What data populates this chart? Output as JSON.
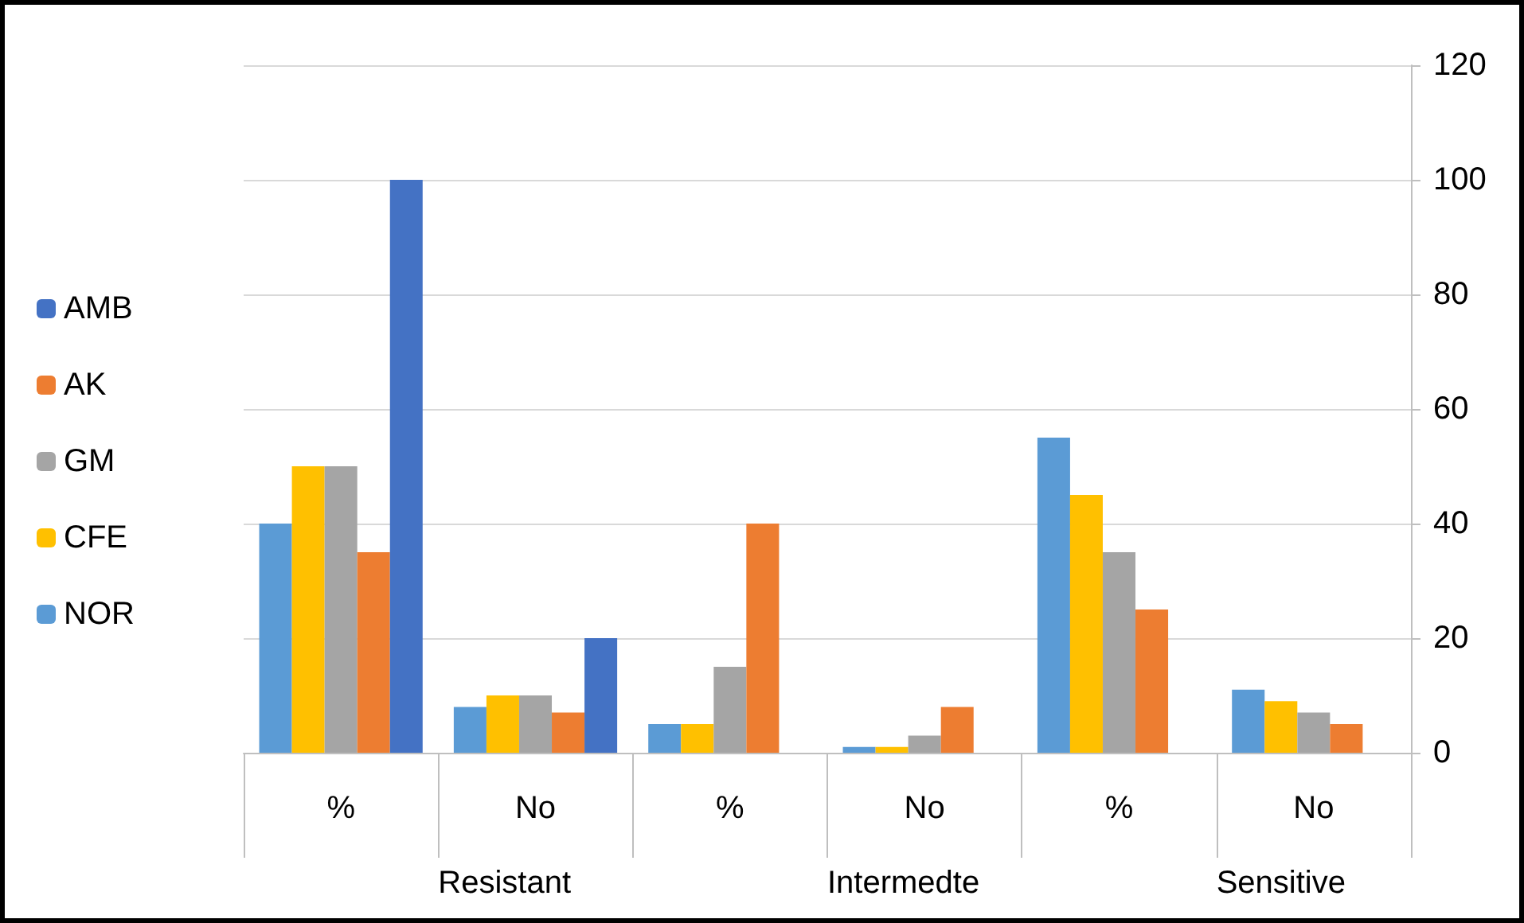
{
  "chart_data": {
    "type": "bar",
    "categories": [
      "%",
      "No",
      "%",
      "No",
      "%",
      "No"
    ],
    "annotations": [
      "Resistant",
      "Intermedte",
      "Sensitive"
    ],
    "series": [
      {
        "name": "NOR",
        "color": "#5b9bd5",
        "values": [
          40,
          8,
          5,
          1,
          55,
          11
        ]
      },
      {
        "name": "CFE",
        "color": "#ffc000",
        "values": [
          50,
          10,
          5,
          1,
          45,
          9
        ]
      },
      {
        "name": "GM",
        "color": "#a5a5a5",
        "values": [
          50,
          10,
          15,
          3,
          35,
          7
        ]
      },
      {
        "name": "AK",
        "color": "#ed7d31",
        "values": [
          35,
          7,
          40,
          8,
          25,
          5
        ]
      },
      {
        "name": "AMB",
        "color": "#4472c4",
        "values": [
          100,
          20,
          0,
          0,
          0,
          0
        ]
      }
    ],
    "ylim": [
      0,
      120
    ],
    "yticks": [
      0,
      20,
      40,
      60,
      80,
      100,
      120
    ],
    "grid": "y",
    "legend": "left"
  }
}
